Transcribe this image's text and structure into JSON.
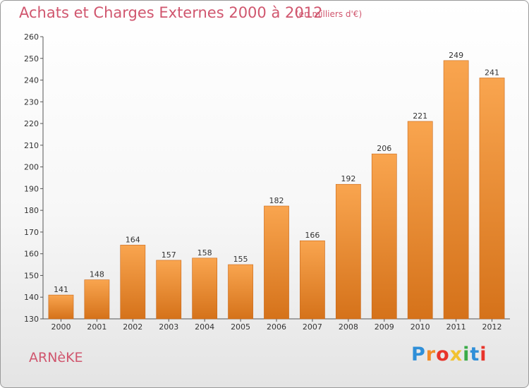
{
  "header": {
    "title": "Achats et Charges Externes 2000 à 2012",
    "subtitle": "(en milliers d'€)"
  },
  "footer": {
    "city": "ARNèKE",
    "logo": {
      "letters": [
        "P",
        "r",
        "o",
        "x",
        "i",
        "t",
        "i"
      ],
      "colors": [
        "#2f8fd8",
        "#f28c28",
        "#e8342a",
        "#f2c230",
        "#3aab48",
        "#2f8fd8",
        "#e8342a"
      ]
    }
  },
  "colors": {
    "bar_light": "#f9a54f",
    "bar_dark": "#d5721a",
    "text_accent": "#d0566e",
    "axis": "#555555"
  },
  "chart_data": {
    "type": "bar",
    "title": "Achats et Charges Externes 2000 à 2012",
    "subtitle": "(en milliers d'€)",
    "categories": [
      "2000",
      "2001",
      "2002",
      "2003",
      "2004",
      "2005",
      "2006",
      "2007",
      "2008",
      "2009",
      "2010",
      "2011",
      "2012"
    ],
    "values": [
      141,
      148,
      164,
      157,
      158,
      155,
      182,
      166,
      192,
      206,
      221,
      249,
      241
    ],
    "ylim": [
      130,
      260
    ],
    "yticks": [
      130,
      140,
      150,
      160,
      170,
      180,
      190,
      200,
      210,
      220,
      230,
      240,
      250,
      260
    ],
    "grid": false,
    "data_labels": true
  }
}
